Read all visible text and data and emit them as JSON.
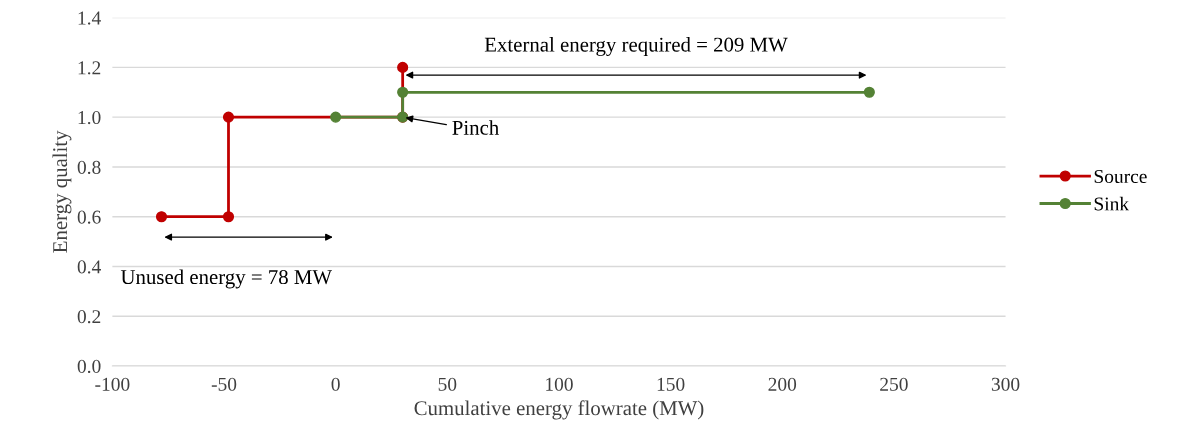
{
  "chart_data": {
    "type": "line",
    "xlabel": "Cumulative energy flowrate (MW)",
    "ylabel": "Energy quality",
    "xlim": [
      -100,
      300
    ],
    "xticks": [
      -100,
      -50,
      0,
      50,
      100,
      150,
      200,
      250,
      300
    ],
    "ylim": [
      0,
      1.4
    ],
    "yticks": [
      {
        "value": 0,
        "label": "0.0"
      },
      {
        "value": 0.2,
        "label": "0.2"
      },
      {
        "value": 0.4,
        "label": "0.4"
      },
      {
        "value": 0.6,
        "label": "0.6"
      },
      {
        "value": 0.8,
        "label": "0.8"
      },
      {
        "value": 1.0,
        "label": "1.0"
      },
      {
        "value": 1.2,
        "label": "1.2"
      },
      {
        "value": 1.4,
        "label": "1.4"
      }
    ],
    "series": [
      {
        "name": "Source",
        "color": "#c00000",
        "x": [
          -78,
          -48,
          -48,
          30,
          30
        ],
        "values": [
          0.6,
          0.6,
          1.0,
          1.0,
          1.2
        ]
      },
      {
        "name": "Sink",
        "color": "#548235",
        "x": [
          0,
          30,
          30,
          239
        ],
        "values": [
          1.0,
          1.0,
          1.1,
          1.1
        ]
      }
    ],
    "annotations": [
      "External energy required = 209 MW",
      {
        "text": "Pinch",
        "x": 30,
        "y": 1.0
      },
      "Unused energy = 78 MW"
    ],
    "grid": "y",
    "legend": "right",
    "marker": "circle",
    "line_style": "solid"
  }
}
